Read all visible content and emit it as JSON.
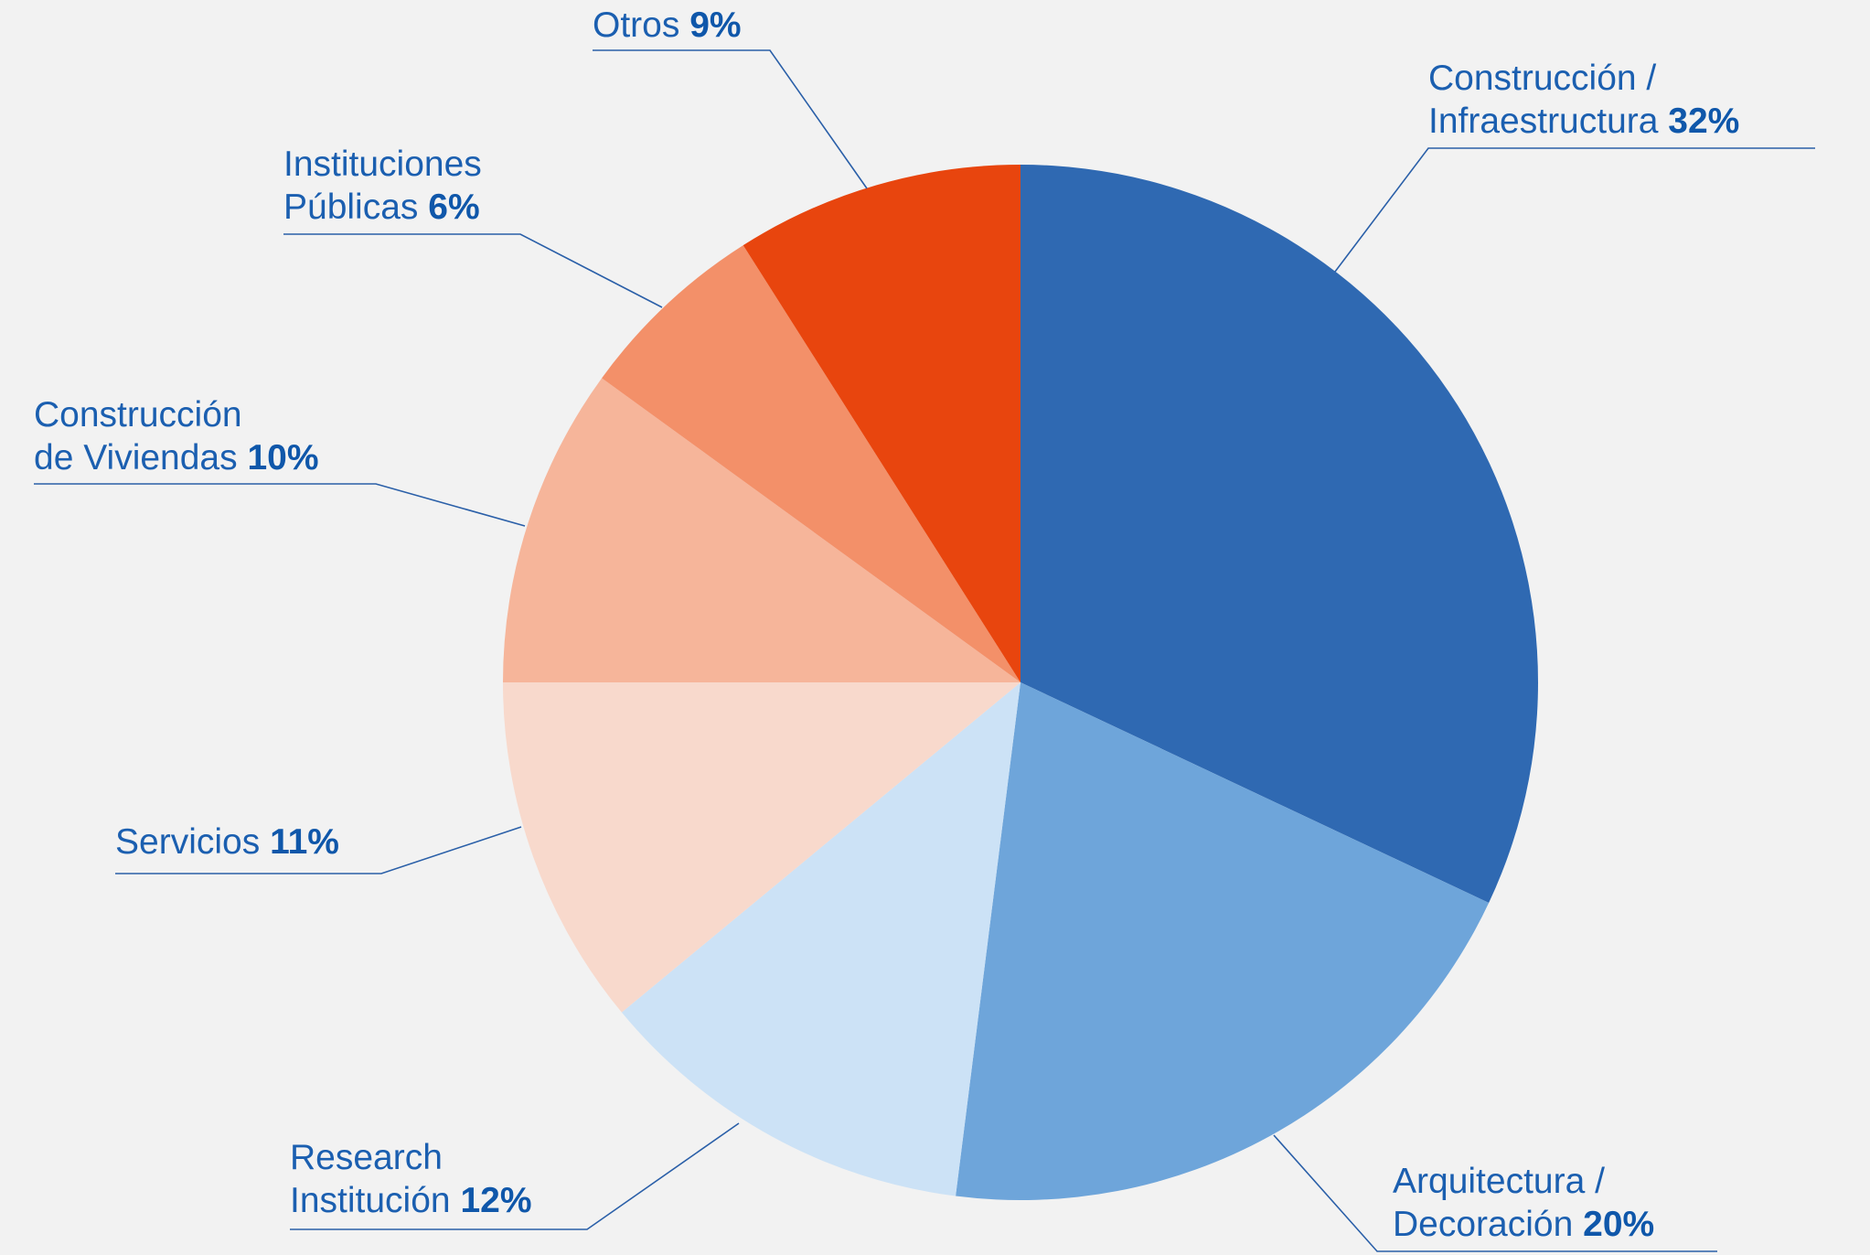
{
  "chart_data": {
    "type": "pie",
    "categories": [
      "Construcción /\nInfraestructura",
      "Arquitectura /\nDecoración",
      "Research\nInstitución",
      "Servicios",
      "Construcción\nde Viviendas",
      "Instituciones\nPúblicas",
      "Otros"
    ],
    "values": [
      32,
      20,
      12,
      11,
      10,
      6,
      9
    ],
    "value_labels": [
      "32%",
      "20%",
      "12%",
      "11%",
      "10%",
      "6%",
      "9%"
    ],
    "colors": [
      "#2f69b2",
      "#6ea5da",
      "#cce2f6",
      "#f8d9cc",
      "#f6b59a",
      "#f39069",
      "#e8450e"
    ]
  }
}
